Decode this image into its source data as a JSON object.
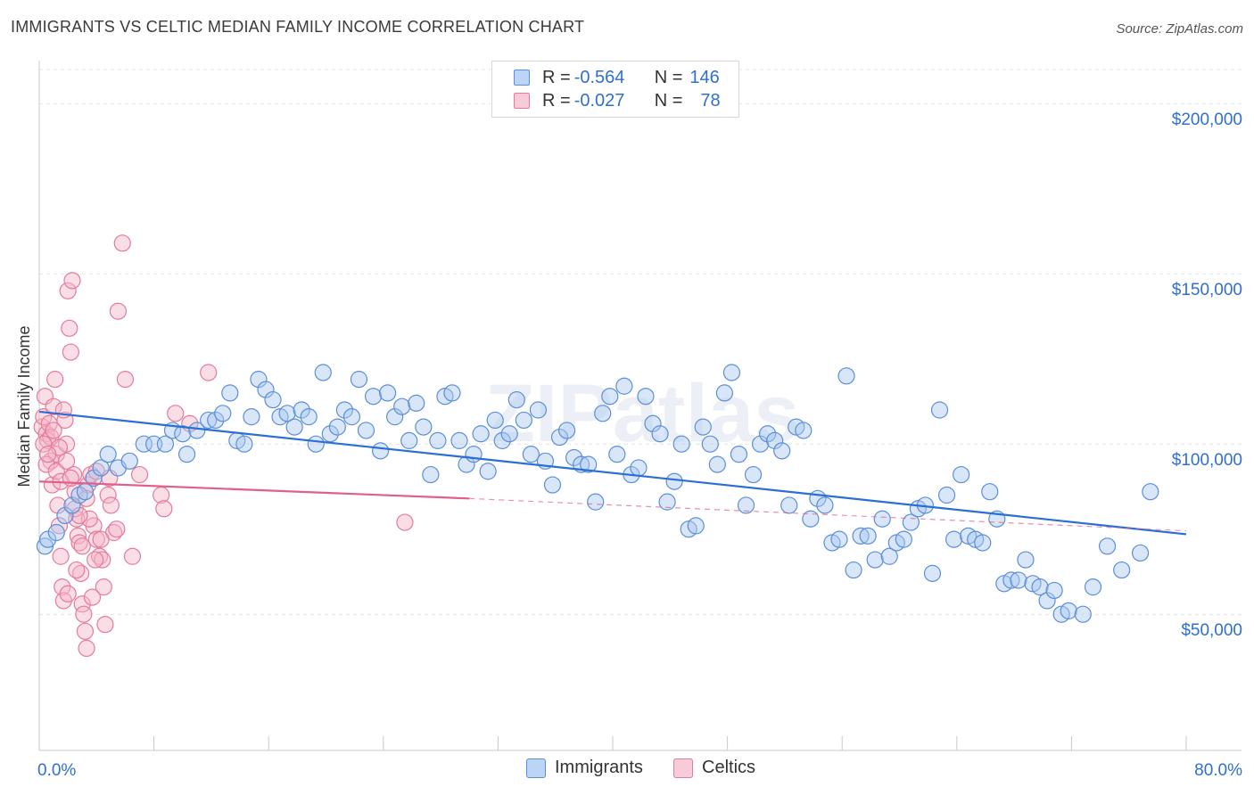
{
  "title": "IMMIGRANTS VS CELTIC MEDIAN FAMILY INCOME CORRELATION CHART",
  "source": "Source: ZipAtlas.com",
  "watermark": "ZIPatlas",
  "legend": {
    "rows": [
      {
        "r_label": "R = ",
        "r_value": "-0.564",
        "n_label": "N = ",
        "n_value": "146"
      },
      {
        "r_label": "R = ",
        "r_value": "-0.027",
        "n_label": "N = ",
        "n_value": "78"
      }
    ]
  },
  "bottom_legend": {
    "series1": "Immigrants",
    "series2": "Celtics"
  },
  "colors": {
    "immigrants_fill": "#a9c8f0",
    "immigrants_stroke": "#5b8fd8",
    "immigrants_line": "#2a6fd6",
    "celtics_fill": "#f5b6c8",
    "celtics_stroke": "#e67a9a",
    "celtics_line": "#e0608a",
    "tick_label": "#2f6fd0",
    "grid": "#e3e3e3"
  },
  "chart_data": {
    "type": "scatter",
    "xlabel": "",
    "ylabel": "Median Family Income",
    "x_tick_labels": [
      "0.0%",
      "80.0%"
    ],
    "y_tick_labels": [
      "$50,000",
      "$100,000",
      "$150,000",
      "$200,000"
    ],
    "y_ticks": [
      50000,
      100000,
      150000,
      200000
    ],
    "xlim": [
      0,
      80
    ],
    "ylim": [
      10000,
      210000
    ],
    "series": [
      {
        "name": "Immigrants",
        "trend": {
          "x": [
            0,
            80
          ],
          "y": [
            109500,
            73500
          ],
          "dashed_from": null
        },
        "points": [
          [
            0.4,
            70000
          ],
          [
            0.6,
            72000
          ],
          [
            1.2,
            74000
          ],
          [
            1.8,
            79000
          ],
          [
            2.3,
            82000
          ],
          [
            2.8,
            85000
          ],
          [
            3.2,
            86000
          ],
          [
            3.8,
            90000
          ],
          [
            4.3,
            93000
          ],
          [
            4.8,
            97000
          ],
          [
            5.5,
            93000
          ],
          [
            6.3,
            95000
          ],
          [
            7.3,
            100000
          ],
          [
            8.0,
            100000
          ],
          [
            8.8,
            100000
          ],
          [
            9.3,
            104000
          ],
          [
            10.0,
            103000
          ],
          [
            10.3,
            97000
          ],
          [
            11.0,
            104000
          ],
          [
            11.8,
            107000
          ],
          [
            12.3,
            107000
          ],
          [
            12.8,
            109000
          ],
          [
            13.3,
            115000
          ],
          [
            13.8,
            101000
          ],
          [
            14.3,
            100000
          ],
          [
            14.8,
            108000
          ],
          [
            15.3,
            119000
          ],
          [
            15.8,
            116000
          ],
          [
            16.3,
            113000
          ],
          [
            16.8,
            108000
          ],
          [
            17.3,
            109000
          ],
          [
            17.8,
            105000
          ],
          [
            18.3,
            110000
          ],
          [
            18.8,
            108000
          ],
          [
            19.3,
            100000
          ],
          [
            19.8,
            121000
          ],
          [
            20.3,
            103000
          ],
          [
            20.8,
            105000
          ],
          [
            21.3,
            110000
          ],
          [
            21.8,
            108000
          ],
          [
            22.3,
            119000
          ],
          [
            22.8,
            104000
          ],
          [
            23.3,
            114000
          ],
          [
            23.8,
            98000
          ],
          [
            24.3,
            115000
          ],
          [
            24.8,
            108000
          ],
          [
            25.3,
            111000
          ],
          [
            25.8,
            101000
          ],
          [
            26.3,
            112000
          ],
          [
            26.8,
            105000
          ],
          [
            27.3,
            91000
          ],
          [
            27.8,
            101000
          ],
          [
            28.3,
            114000
          ],
          [
            28.8,
            115000
          ],
          [
            29.3,
            101000
          ],
          [
            29.8,
            94000
          ],
          [
            30.3,
            97000
          ],
          [
            30.8,
            103000
          ],
          [
            31.3,
            92000
          ],
          [
            31.8,
            107000
          ],
          [
            32.3,
            101000
          ],
          [
            32.8,
            103000
          ],
          [
            33.3,
            113000
          ],
          [
            33.8,
            107000
          ],
          [
            34.3,
            97000
          ],
          [
            34.8,
            110000
          ],
          [
            35.3,
            95000
          ],
          [
            35.8,
            88000
          ],
          [
            36.3,
            102000
          ],
          [
            36.8,
            104000
          ],
          [
            37.3,
            96000
          ],
          [
            37.8,
            94000
          ],
          [
            38.3,
            94000
          ],
          [
            38.8,
            83000
          ],
          [
            39.3,
            109000
          ],
          [
            39.8,
            114000
          ],
          [
            40.3,
            97000
          ],
          [
            40.8,
            117000
          ],
          [
            41.3,
            91000
          ],
          [
            41.8,
            93000
          ],
          [
            42.3,
            114000
          ],
          [
            42.8,
            106000
          ],
          [
            43.3,
            103000
          ],
          [
            43.8,
            83000
          ],
          [
            44.3,
            89000
          ],
          [
            44.8,
            100000
          ],
          [
            45.3,
            75000
          ],
          [
            45.8,
            76000
          ],
          [
            46.3,
            105000
          ],
          [
            46.8,
            100000
          ],
          [
            47.3,
            94000
          ],
          [
            47.8,
            115000
          ],
          [
            48.3,
            121000
          ],
          [
            48.8,
            97000
          ],
          [
            49.3,
            82000
          ],
          [
            49.8,
            91000
          ],
          [
            50.3,
            100000
          ],
          [
            50.8,
            103000
          ],
          [
            51.3,
            101000
          ],
          [
            51.8,
            98000
          ],
          [
            52.3,
            82000
          ],
          [
            52.8,
            105000
          ],
          [
            53.3,
            104000
          ],
          [
            53.8,
            78000
          ],
          [
            54.3,
            84000
          ],
          [
            54.8,
            82000
          ],
          [
            55.3,
            71000
          ],
          [
            55.8,
            72000
          ],
          [
            56.3,
            120000
          ],
          [
            56.8,
            63000
          ],
          [
            57.3,
            73000
          ],
          [
            57.8,
            73000
          ],
          [
            58.3,
            66000
          ],
          [
            58.8,
            78000
          ],
          [
            59.3,
            67000
          ],
          [
            59.8,
            71000
          ],
          [
            60.3,
            72000
          ],
          [
            60.8,
            77000
          ],
          [
            61.3,
            81000
          ],
          [
            61.8,
            82000
          ],
          [
            62.3,
            62000
          ],
          [
            62.8,
            110000
          ],
          [
            63.3,
            85000
          ],
          [
            63.8,
            72000
          ],
          [
            64.3,
            91000
          ],
          [
            64.8,
            73000
          ],
          [
            65.3,
            72000
          ],
          [
            65.8,
            71000
          ],
          [
            66.3,
            86000
          ],
          [
            66.8,
            78000
          ],
          [
            67.3,
            59000
          ],
          [
            67.8,
            60000
          ],
          [
            68.3,
            60000
          ],
          [
            68.8,
            66000
          ],
          [
            69.3,
            59000
          ],
          [
            69.8,
            58000
          ],
          [
            70.3,
            54000
          ],
          [
            70.8,
            57000
          ],
          [
            71.3,
            50000
          ],
          [
            71.8,
            51000
          ],
          [
            72.8,
            50000
          ],
          [
            73.5,
            58000
          ],
          [
            74.5,
            70000
          ],
          [
            75.5,
            63000
          ],
          [
            76.8,
            68000
          ],
          [
            77.5,
            86000
          ]
        ]
      },
      {
        "name": "Celtics",
        "trend": {
          "x": [
            0,
            30
          ],
          "y": [
            89000,
            84000
          ],
          "dashed_x": [
            30,
            80
          ],
          "dashed_y": [
            84000,
            74500
          ]
        },
        "points": [
          [
            0.2,
            105000
          ],
          [
            0.3,
            108000
          ],
          [
            0.4,
            114000
          ],
          [
            0.5,
            103000
          ],
          [
            0.6,
            101000
          ],
          [
            0.7,
            106000
          ],
          [
            0.8,
            95000
          ],
          [
            0.9,
            88000
          ],
          [
            1.0,
            111000
          ],
          [
            1.1,
            119000
          ],
          [
            1.2,
            97000
          ],
          [
            1.3,
            82000
          ],
          [
            1.4,
            76000
          ],
          [
            1.5,
            67000
          ],
          [
            1.6,
            58000
          ],
          [
            1.7,
            54000
          ],
          [
            1.8,
            107000
          ],
          [
            1.9,
            100000
          ],
          [
            2.0,
            145000
          ],
          [
            2.1,
            134000
          ],
          [
            2.2,
            127000
          ],
          [
            2.3,
            148000
          ],
          [
            2.4,
            91000
          ],
          [
            2.5,
            86000
          ],
          [
            2.6,
            78000
          ],
          [
            2.7,
            73000
          ],
          [
            2.8,
            71000
          ],
          [
            2.9,
            62000
          ],
          [
            3.0,
            53000
          ],
          [
            3.1,
            50000
          ],
          [
            3.2,
            45000
          ],
          [
            3.3,
            40000
          ],
          [
            3.4,
            88000
          ],
          [
            3.6,
            91000
          ],
          [
            3.8,
            76000
          ],
          [
            4.0,
            72000
          ],
          [
            4.2,
            67000
          ],
          [
            4.4,
            66000
          ],
          [
            4.6,
            47000
          ],
          [
            4.8,
            85000
          ],
          [
            5.0,
            82000
          ],
          [
            5.2,
            74000
          ],
          [
            5.5,
            139000
          ],
          [
            5.8,
            159000
          ],
          [
            6.0,
            119000
          ],
          [
            6.5,
            67000
          ],
          [
            7.0,
            91000
          ],
          [
            8.5,
            85000
          ],
          [
            8.7,
            81000
          ],
          [
            9.5,
            109000
          ],
          [
            10.5,
            106000
          ],
          [
            11.8,
            121000
          ],
          [
            25.5,
            77000
          ],
          [
            0.5,
            94000
          ],
          [
            0.8,
            102000
          ],
          [
            1.2,
            92000
          ],
          [
            1.5,
            89000
          ],
          [
            1.9,
            95000
          ],
          [
            2.5,
            81000
          ],
          [
            3.0,
            70000
          ],
          [
            3.5,
            78000
          ],
          [
            4.0,
            92000
          ],
          [
            4.5,
            58000
          ],
          [
            1.0,
            104000
          ],
          [
            0.3,
            100000
          ],
          [
            1.7,
            110000
          ],
          [
            2.2,
            90000
          ],
          [
            2.8,
            79000
          ],
          [
            3.3,
            84000
          ],
          [
            3.9,
            66000
          ],
          [
            4.3,
            72000
          ],
          [
            2.0,
            56000
          ],
          [
            2.6,
            63000
          ],
          [
            1.4,
            99000
          ],
          [
            0.6,
            97000
          ],
          [
            3.7,
            55000
          ],
          [
            4.9,
            90000
          ],
          [
            5.4,
            75000
          ]
        ]
      }
    ],
    "legend_position": "top-center",
    "grid": true
  }
}
